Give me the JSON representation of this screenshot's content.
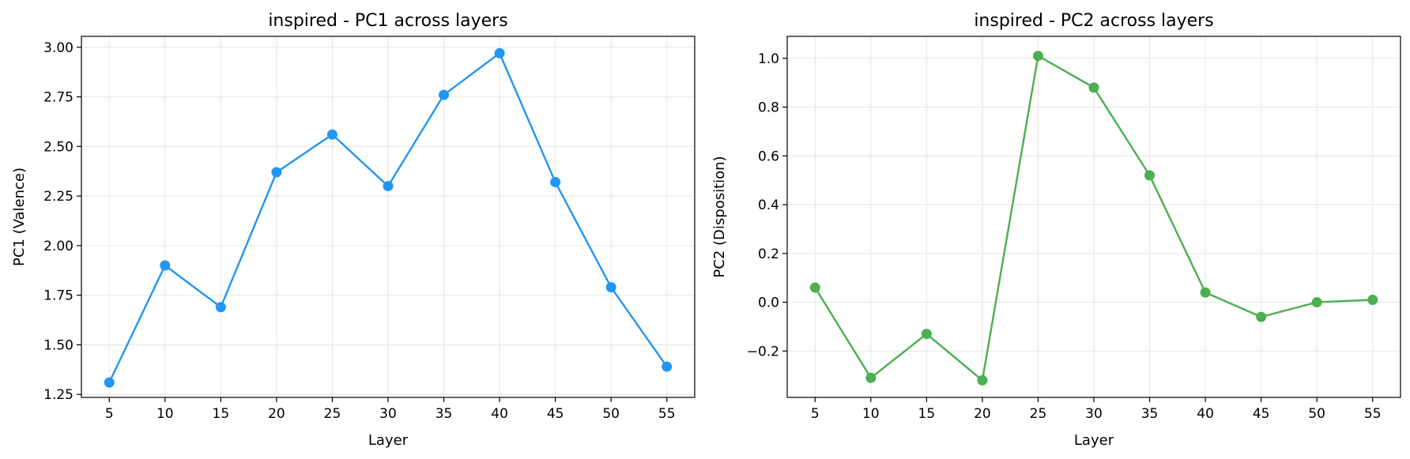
{
  "chart_data": [
    {
      "type": "line",
      "title": "inspired - PC1 across layers",
      "xlabel": "Layer",
      "ylabel": "PC1 (Valence)",
      "x": [
        5,
        10,
        15,
        20,
        25,
        30,
        35,
        40,
        45,
        50,
        55
      ],
      "x_ticks": [
        "5",
        "10",
        "15",
        "20",
        "25",
        "30",
        "35",
        "40",
        "45",
        "50",
        "55"
      ],
      "y_ticks": [
        "1.25",
        "1.50",
        "1.75",
        "2.00",
        "2.25",
        "2.50",
        "2.75",
        "3.00"
      ],
      "y_tick_values": [
        1.25,
        1.5,
        1.75,
        2.0,
        2.25,
        2.5,
        2.75,
        3.0
      ],
      "xlim": [
        2.5,
        57.5
      ],
      "ylim": [
        1.235,
        3.055
      ],
      "grid": true,
      "series": [
        {
          "color": "#2196f3",
          "values": [
            1.31,
            1.9,
            1.69,
            2.37,
            2.56,
            2.3,
            2.76,
            2.97,
            2.32,
            1.79,
            1.39
          ]
        }
      ]
    },
    {
      "type": "line",
      "title": "inspired - PC2 across layers",
      "xlabel": "Layer",
      "ylabel": "PC2 (Disposition)",
      "x": [
        5,
        10,
        15,
        20,
        25,
        30,
        35,
        40,
        45,
        50,
        55
      ],
      "x_ticks": [
        "5",
        "10",
        "15",
        "20",
        "25",
        "30",
        "35",
        "40",
        "45",
        "50",
        "55"
      ],
      "y_ticks": [
        "−0.2",
        "0.0",
        "0.2",
        "0.4",
        "0.6",
        "0.8",
        "1.0"
      ],
      "y_tick_values": [
        -0.2,
        0.0,
        0.2,
        0.4,
        0.6,
        0.8,
        1.0
      ],
      "xlim": [
        2.5,
        57.5
      ],
      "ylim": [
        -0.39,
        1.09
      ],
      "grid": true,
      "series": [
        {
          "color": "#4caf50",
          "values": [
            0.06,
            -0.31,
            -0.13,
            -0.32,
            1.01,
            0.88,
            0.52,
            0.04,
            -0.06,
            0.0,
            0.01
          ]
        }
      ]
    }
  ]
}
